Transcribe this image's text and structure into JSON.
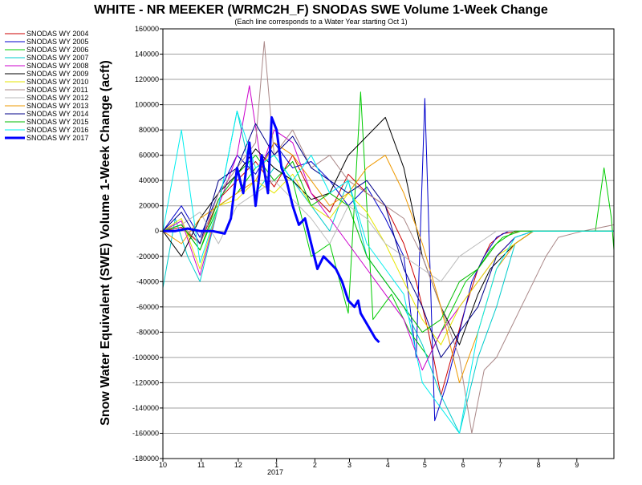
{
  "chart_data": {
    "type": "line",
    "title": "WHITE - NR MEEKER (WRMC2H_F) SNODAS SWE Volume 1-Week Change",
    "subtitle": "(Each line corresponds to a Water Year starting Oct 1)",
    "ylabel": "Snow Water Equivalent (SWE) Volume 1-Week Change (acft)",
    "xlabel": "",
    "ylim": [
      -180000,
      160000
    ],
    "yticks": [
      160000,
      140000,
      120000,
      100000,
      80000,
      60000,
      40000,
      20000,
      0,
      -20000,
      -40000,
      -60000,
      -80000,
      -100000,
      -120000,
      -140000,
      -160000,
      -180000
    ],
    "xlim": [
      0,
      365
    ],
    "xticks": [
      {
        "label": "10",
        "x": 0
      },
      {
        "label": "11",
        "x": 31
      },
      {
        "label": "12",
        "x": 61
      },
      {
        "label": "1",
        "x": 92
      },
      {
        "label": "2",
        "x": 123
      },
      {
        "label": "3",
        "x": 151
      },
      {
        "label": "4",
        "x": 182
      },
      {
        "label": "5",
        "x": 212
      },
      {
        "label": "6",
        "x": 243
      },
      {
        "label": "7",
        "x": 273
      },
      {
        "label": "8",
        "x": 304
      },
      {
        "label": "9",
        "x": 335
      }
    ],
    "xsublabel": "2017",
    "grid": true,
    "legend_position": "left",
    "series": [
      {
        "name": "SNODAS WY 2004",
        "color": "#cc0000",
        "width": 1,
        "x": [
          0,
          15,
          30,
          45,
          60,
          75,
          90,
          105,
          120,
          135,
          150,
          165,
          180,
          195,
          205,
          215,
          225,
          235,
          245,
          255,
          265,
          275,
          290,
          310,
          340,
          365
        ],
        "values": [
          0,
          3000,
          -10000,
          25000,
          40000,
          55000,
          35000,
          60000,
          30000,
          15000,
          45000,
          30000,
          20000,
          -10000,
          -40000,
          -80000,
          -130000,
          -95000,
          -60000,
          -30000,
          -10000,
          -2000,
          0,
          0,
          0,
          0
        ]
      },
      {
        "name": "SNODAS WY 2005",
        "color": "#0000cc",
        "width": 1,
        "x": [
          0,
          15,
          30,
          45,
          60,
          75,
          90,
          105,
          120,
          135,
          150,
          165,
          180,
          195,
          205,
          212,
          220,
          230,
          240,
          250,
          260,
          270,
          280,
          295,
          320,
          365
        ],
        "values": [
          0,
          20000,
          -5000,
          30000,
          60000,
          45000,
          70000,
          50000,
          55000,
          40000,
          20000,
          35000,
          10000,
          -20000,
          -100000,
          105000,
          -150000,
          -120000,
          -80000,
          -40000,
          -20000,
          -5000,
          0,
          0,
          0,
          0
        ]
      },
      {
        "name": "SNODAS WY 2006",
        "color": "#00cc00",
        "width": 1,
        "x": [
          0,
          15,
          30,
          45,
          60,
          75,
          90,
          105,
          120,
          135,
          150,
          160,
          170,
          185,
          200,
          215,
          230,
          245,
          255,
          265,
          275,
          290,
          310,
          350,
          357,
          363,
          365
        ],
        "values": [
          0,
          5000,
          -15000,
          20000,
          30000,
          50000,
          60000,
          40000,
          -20000,
          -10000,
          -65000,
          110000,
          -70000,
          -50000,
          -80000,
          -100000,
          -70000,
          -40000,
          -30000,
          -15000,
          -5000,
          0,
          0,
          0,
          50000,
          10000,
          -15000
        ]
      },
      {
        "name": "SNODAS WY 2007",
        "color": "#00cccc",
        "width": 1,
        "x": [
          0,
          10,
          20,
          30,
          45,
          60,
          75,
          90,
          105,
          120,
          135,
          150,
          165,
          180,
          195,
          210,
          225,
          240,
          255,
          270,
          285,
          300,
          320,
          365
        ],
        "values": [
          -45000,
          10000,
          -20000,
          -40000,
          20000,
          95000,
          30000,
          50000,
          40000,
          20000,
          0,
          40000,
          -20000,
          -40000,
          -60000,
          -90000,
          -130000,
          -160000,
          -100000,
          -60000,
          -10000,
          0,
          0,
          0
        ]
      },
      {
        "name": "SNODAS WY 2008",
        "color": "#cc00cc",
        "width": 1,
        "x": [
          0,
          15,
          30,
          45,
          60,
          70,
          80,
          90,
          105,
          120,
          135,
          150,
          165,
          180,
          195,
          210,
          225,
          240,
          255,
          270,
          285,
          300,
          320,
          365
        ],
        "values": [
          0,
          8000,
          -35000,
          20000,
          60000,
          115000,
          50000,
          80000,
          70000,
          30000,
          10000,
          -10000,
          -30000,
          -50000,
          -70000,
          -110000,
          -80000,
          -60000,
          -40000,
          -20000,
          -5000,
          0,
          0,
          0
        ]
      },
      {
        "name": "SNODAS WY 2009",
        "color": "#000000",
        "width": 1,
        "x": [
          0,
          15,
          30,
          45,
          60,
          75,
          90,
          105,
          120,
          135,
          150,
          165,
          180,
          195,
          210,
          225,
          240,
          255,
          265,
          275,
          285,
          300,
          320,
          365
        ],
        "values": [
          0,
          -20000,
          10000,
          30000,
          45000,
          65000,
          50000,
          40000,
          25000,
          30000,
          60000,
          75000,
          90000,
          50000,
          -20000,
          -60000,
          -90000,
          -50000,
          -30000,
          -20000,
          -10000,
          0,
          0,
          0
        ]
      },
      {
        "name": "SNODAS WY 2010",
        "color": "#e6e600",
        "width": 1,
        "x": [
          0,
          15,
          30,
          45,
          60,
          75,
          90,
          105,
          120,
          135,
          150,
          165,
          180,
          195,
          210,
          225,
          240,
          255,
          270,
          285,
          300,
          320,
          365
        ],
        "values": [
          0,
          10000,
          -30000,
          20000,
          25000,
          40000,
          30000,
          45000,
          20000,
          10000,
          30000,
          15000,
          -10000,
          -40000,
          -70000,
          -90000,
          -60000,
          -40000,
          -20000,
          -10000,
          0,
          0,
          0
        ]
      },
      {
        "name": "SNODAS WY 2011",
        "color": "#aa8888",
        "width": 1,
        "x": [
          0,
          15,
          30,
          45,
          60,
          75,
          82,
          90,
          105,
          120,
          135,
          150,
          165,
          180,
          195,
          210,
          225,
          240,
          250,
          260,
          270,
          280,
          290,
          300,
          310,
          320,
          340,
          365
        ],
        "values": [
          0,
          5000,
          -10000,
          30000,
          50000,
          70000,
          150000,
          60000,
          80000,
          50000,
          60000,
          40000,
          30000,
          20000,
          10000,
          -20000,
          -60000,
          -100000,
          -160000,
          -110000,
          -100000,
          -80000,
          -60000,
          -40000,
          -20000,
          -5000,
          0,
          5000
        ]
      },
      {
        "name": "SNODAS WY 2012",
        "color": "#bbbbbb",
        "width": 1,
        "x": [
          0,
          15,
          30,
          45,
          60,
          75,
          90,
          105,
          120,
          135,
          150,
          165,
          180,
          195,
          210,
          225,
          240,
          255,
          270,
          285,
          300,
          365
        ],
        "values": [
          0,
          5000,
          15000,
          -10000,
          20000,
          30000,
          40000,
          25000,
          10000,
          -10000,
          20000,
          10000,
          -10000,
          -20000,
          -30000,
          -40000,
          -20000,
          -10000,
          0,
          0,
          0,
          0
        ]
      },
      {
        "name": "SNODAS WY 2013",
        "color": "#ee9900",
        "width": 1,
        "x": [
          0,
          15,
          30,
          45,
          60,
          75,
          90,
          105,
          120,
          135,
          150,
          165,
          180,
          195,
          210,
          225,
          240,
          255,
          270,
          285,
          300,
          320,
          365
        ],
        "values": [
          0,
          -10000,
          10000,
          20000,
          30000,
          40000,
          70000,
          60000,
          40000,
          20000,
          30000,
          50000,
          60000,
          30000,
          -10000,
          -60000,
          -120000,
          -80000,
          -30000,
          -10000,
          0,
          0,
          0
        ]
      },
      {
        "name": "SNODAS WY 2014",
        "color": "#000088",
        "width": 1,
        "x": [
          0,
          15,
          30,
          45,
          60,
          75,
          90,
          105,
          120,
          135,
          150,
          165,
          180,
          195,
          210,
          225,
          240,
          255,
          270,
          285,
          300,
          320,
          365
        ],
        "values": [
          0,
          15000,
          -10000,
          40000,
          50000,
          85000,
          60000,
          75000,
          50000,
          40000,
          30000,
          40000,
          20000,
          -30000,
          -60000,
          -100000,
          -80000,
          -60000,
          -20000,
          -5000,
          0,
          0,
          0
        ]
      },
      {
        "name": "SNODAS WY 2015",
        "color": "#00bb00",
        "width": 1,
        "x": [
          0,
          15,
          30,
          45,
          60,
          75,
          90,
          105,
          120,
          135,
          150,
          165,
          180,
          195,
          210,
          225,
          240,
          255,
          270,
          285,
          300,
          365
        ],
        "values": [
          0,
          5000,
          -15000,
          25000,
          45000,
          60000,
          40000,
          55000,
          20000,
          30000,
          20000,
          -20000,
          -40000,
          -60000,
          -80000,
          -70000,
          -40000,
          -30000,
          -10000,
          0,
          0,
          0
        ]
      },
      {
        "name": "SNODAS WY 2016",
        "color": "#00eeee",
        "width": 1,
        "x": [
          0,
          15,
          30,
          45,
          60,
          75,
          90,
          105,
          120,
          135,
          150,
          165,
          180,
          195,
          210,
          225,
          240,
          255,
          270,
          285,
          300,
          365
        ],
        "values": [
          0,
          80000,
          -25000,
          20000,
          95000,
          50000,
          60000,
          40000,
          60000,
          30000,
          40000,
          -10000,
          -30000,
          -50000,
          -120000,
          -140000,
          -160000,
          -80000,
          -30000,
          -5000,
          0,
          0
        ]
      },
      {
        "name": "SNODAS WY 2017",
        "color": "#0000ff",
        "width": 3,
        "x": [
          0,
          10,
          20,
          30,
          40,
          50,
          55,
          60,
          65,
          70,
          75,
          80,
          85,
          88,
          92,
          96,
          100,
          105,
          110,
          115,
          120,
          125,
          130,
          135,
          140,
          145,
          150,
          155,
          158,
          160,
          163,
          166,
          169,
          172,
          175
        ],
        "values": [
          0,
          0,
          2000,
          0,
          0,
          -2000,
          10000,
          50000,
          30000,
          70000,
          20000,
          60000,
          30000,
          90000,
          80000,
          50000,
          40000,
          20000,
          5000,
          10000,
          -10000,
          -30000,
          -20000,
          -25000,
          -30000,
          -40000,
          -55000,
          -60000,
          -55000,
          -65000,
          -70000,
          -75000,
          -80000,
          -85000,
          -88000
        ]
      }
    ]
  }
}
